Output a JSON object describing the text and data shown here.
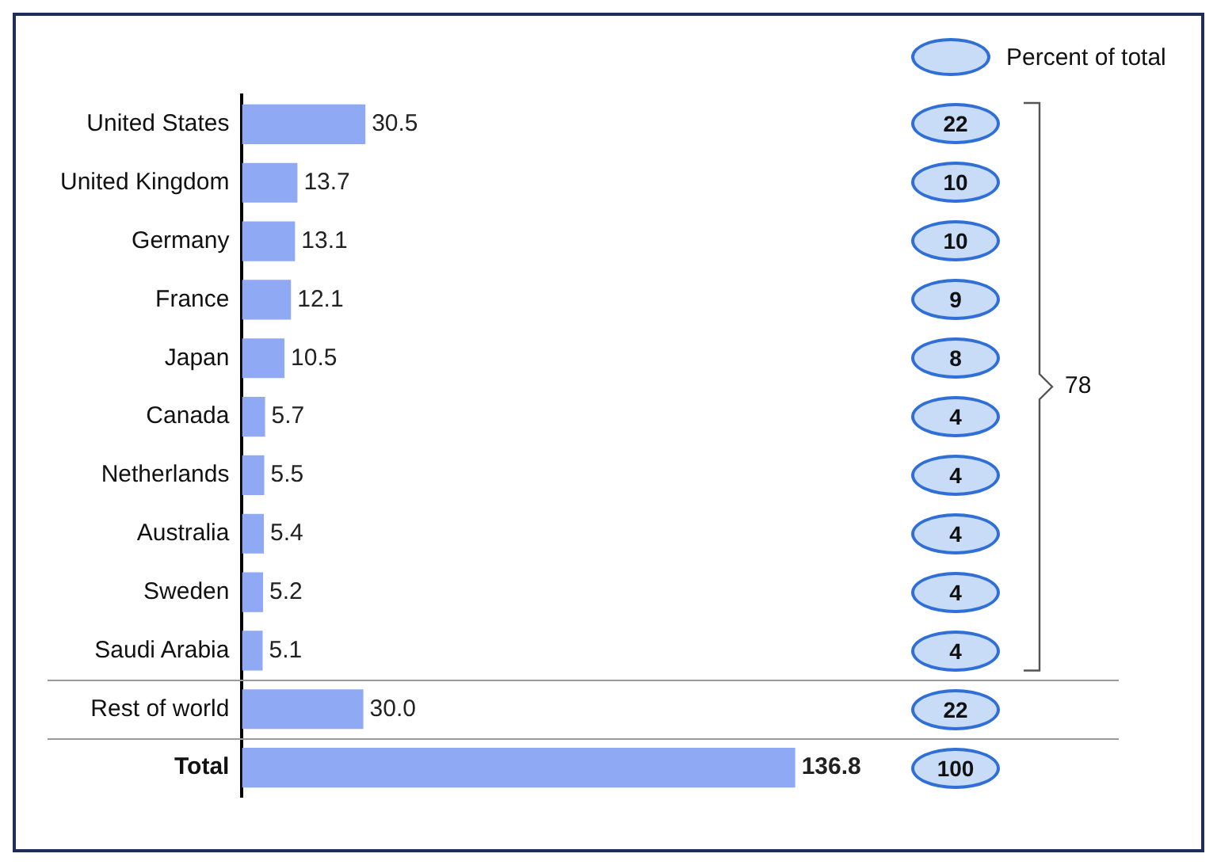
{
  "chart_data": {
    "type": "bar",
    "orientation": "horizontal",
    "categories": [
      "United States",
      "United Kingdom",
      "Germany",
      "France",
      "Japan",
      "Canada",
      "Netherlands",
      "Australia",
      "Sweden",
      "Saudi Arabia",
      "Rest of world",
      "Total"
    ],
    "values": [
      30.5,
      13.7,
      13.1,
      12.1,
      10.5,
      5.7,
      5.5,
      5.4,
      5.2,
      5.1,
      30.0,
      136.8
    ],
    "value_labels": [
      "30.5",
      "13.7",
      "13.1",
      "12.1",
      "10.5",
      "5.7",
      "5.5",
      "5.4",
      "5.2",
      "5.1",
      "30.0",
      "136.8"
    ],
    "color": "#8fa9f5",
    "tick_labels": "y",
    "grid": false,
    "legend": false,
    "annotations": [
      "Percent of total",
      "22",
      "10",
      "10",
      "9",
      "8",
      "4",
      "4",
      "4",
      "4",
      "4",
      "22",
      "100",
      "78"
    ]
  }
}
